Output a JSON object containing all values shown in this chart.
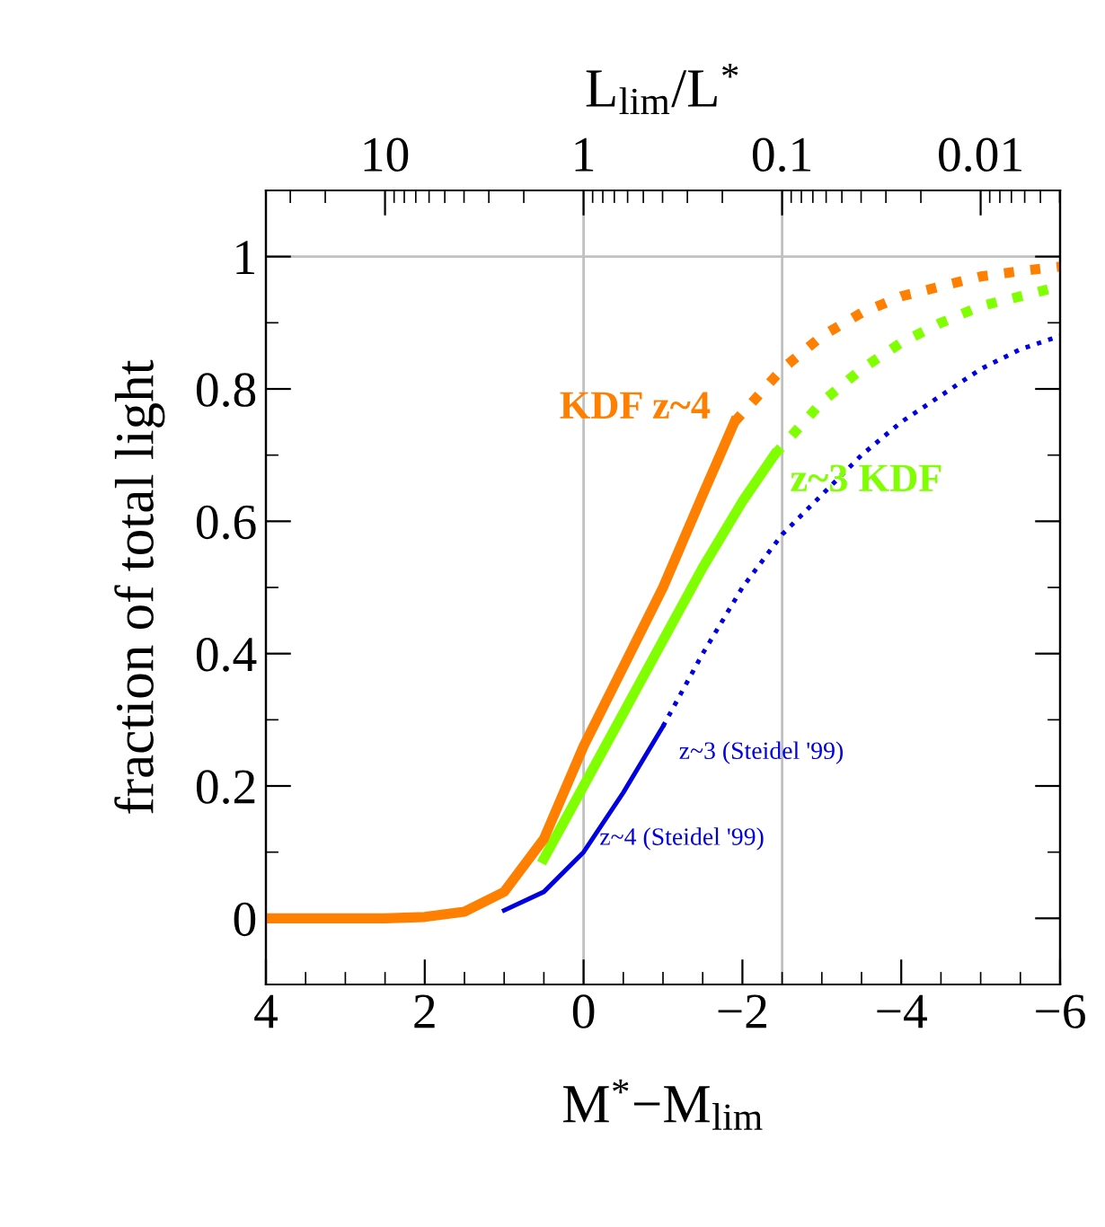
{
  "chart_data": {
    "type": "line",
    "xlabel": "M$^{*}$−M$_{lim}$",
    "ylabel": "fraction of total light",
    "x2label": "L$_{lim}$/L$^{*}$",
    "xlim": [
      4,
      -6
    ],
    "xticks": [
      4,
      2,
      0,
      {
        "value": -2,
        "label": "−2"
      },
      {
        "value": -4,
        "label": "−4"
      },
      {
        "value": -6,
        "label": "−6"
      }
    ],
    "ylim": [
      -0.1,
      1.1
    ],
    "yticks": [
      0,
      0.2,
      0.4,
      0.6,
      0.8,
      1
    ],
    "x2lim": [
      39.8,
      0.00398
    ],
    "x2ticks": [
      10,
      1,
      0.1,
      0.01
    ],
    "log": "x2",
    "grid": false,
    "ref_lines": [
      {
        "axis": "x",
        "value": 0,
        "color": "#c0c0c0"
      },
      {
        "axis": "x",
        "value": -2.5,
        "color": "#c0c0c0"
      },
      {
        "axis": "y",
        "value": 1,
        "color": "#c0c0c0"
      }
    ],
    "series": [
      {
        "name": "KDF z~4",
        "color": "#ff7f00",
        "line_style": "solid",
        "x": [
          4,
          3,
          2.5,
          2,
          1.5,
          1,
          0.5,
          0,
          -0.5,
          -1,
          -1.5,
          -1.9
        ],
        "values": [
          0,
          0,
          0,
          0.002,
          0.01,
          0.04,
          0.12,
          0.26,
          0.38,
          0.5,
          0.64,
          0.75
        ]
      },
      {
        "color": "#ff7f00",
        "line_style": "dotted",
        "x": [
          -1.9,
          -2.5,
          -3,
          -3.5,
          -4,
          -4.5,
          -5,
          -5.5,
          -6
        ],
        "values": [
          0.75,
          0.83,
          0.88,
          0.915,
          0.94,
          0.955,
          0.97,
          0.978,
          0.985
        ]
      },
      {
        "name": "z~3 KDF",
        "color": "#80ff00",
        "line_style": "solid",
        "x": [
          0.5,
          0,
          -0.5,
          -1,
          -1.5,
          -2,
          -2.4
        ],
        "values": [
          0.09,
          0.2,
          0.31,
          0.42,
          0.53,
          0.63,
          0.7
        ]
      },
      {
        "color": "#80ff00",
        "line_style": "dotted",
        "x": [
          -2.4,
          -3,
          -3.5,
          -4,
          -4.5,
          -5,
          -5.5,
          -6
        ],
        "values": [
          0.7,
          0.78,
          0.83,
          0.87,
          0.9,
          0.925,
          0.94,
          0.955
        ]
      },
      {
        "name": "z~3 (Steidel '99)",
        "color": "#0000e0",
        "line_style": "solid",
        "x": [
          1,
          0.5,
          0,
          -0.5,
          -1
        ],
        "values": [
          0.012,
          0.04,
          0.1,
          0.19,
          0.29
        ]
      },
      {
        "color": "#0000e0",
        "line_style": "dotted",
        "x": [
          -1,
          -1.5,
          -2,
          -2.5,
          -3,
          -3.5,
          -4,
          -4.5,
          -5,
          -5.5,
          -6
        ],
        "values": [
          0.29,
          0.4,
          0.5,
          0.58,
          0.64,
          0.7,
          0.75,
          0.79,
          0.83,
          0.86,
          0.88
        ]
      }
    ],
    "annotations": [
      {
        "text": "z~4 (Steidel '99)",
        "x": -0.2,
        "y": 0.12
      }
    ]
  }
}
